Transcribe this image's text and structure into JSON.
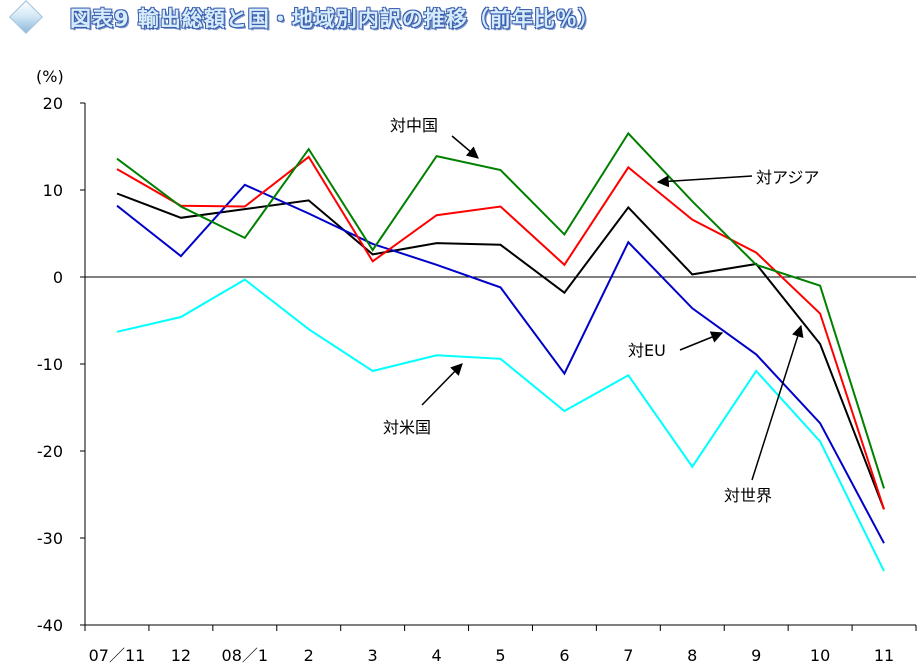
{
  "title": "図表9 輸出総額と国・地域別内訳の推移（前年比％）",
  "chart_data": {
    "type": "line",
    "title": "図表9 輸出総額と国・地域別内訳の推移（前年比％）",
    "ylabel": "(%)",
    "xlabel": "",
    "ylim": [
      -40,
      20
    ],
    "yticks": [
      20,
      10,
      0,
      -10,
      -20,
      -30,
      -40
    ],
    "ytick_labels": [
      "20",
      "10",
      "0",
      "-10",
      "-20",
      "-30",
      "-40"
    ],
    "grid": false,
    "categories": [
      "07／11",
      "12",
      "08／1",
      "2",
      "3",
      "4",
      "5",
      "6",
      "7",
      "8",
      "9",
      "10",
      "11"
    ],
    "series": [
      {
        "name": "対世界",
        "color": "#000000",
        "values": [
          9.6,
          6.8,
          7.8,
          8.8,
          2.6,
          3.9,
          3.7,
          -1.8,
          8.0,
          0.3,
          1.5,
          -7.7,
          -26.7
        ]
      },
      {
        "name": "対米国",
        "color": "#00ffff",
        "values": [
          -6.3,
          -4.6,
          -0.3,
          -6.0,
          -10.8,
          -9.0,
          -9.4,
          -15.4,
          -11.3,
          -21.8,
          -10.8,
          -18.9,
          -33.8
        ]
      },
      {
        "name": "対EU",
        "color": "#0000c8",
        "values": [
          8.2,
          2.4,
          10.6,
          7.3,
          3.8,
          1.4,
          -1.2,
          -11.1,
          4.0,
          -3.6,
          -8.9,
          -16.8,
          -30.6
        ]
      },
      {
        "name": "対アジア",
        "color": "#ff0000",
        "values": [
          12.4,
          8.2,
          8.1,
          13.8,
          1.8,
          7.1,
          8.1,
          1.4,
          12.6,
          6.6,
          2.8,
          -4.2,
          -26.7
        ]
      },
      {
        "name": "対中国",
        "color": "#008000",
        "values": [
          13.6,
          8.1,
          4.5,
          14.7,
          3.1,
          13.9,
          12.3,
          4.9,
          16.5,
          8.7,
          1.4,
          -1.0,
          -24.3
        ]
      }
    ],
    "annotations": [
      {
        "text": "対中国",
        "series": "対中国"
      },
      {
        "text": "対アジア",
        "series": "対アジア"
      },
      {
        "text": "対EU",
        "series": "対EU"
      },
      {
        "text": "対米国",
        "series": "対米国"
      },
      {
        "text": "対世界",
        "series": "対世界"
      }
    ]
  }
}
